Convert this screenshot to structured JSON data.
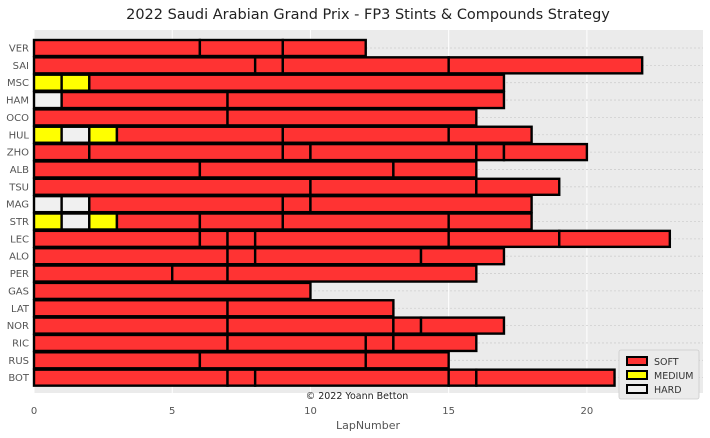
{
  "chart_data": {
    "type": "bar",
    "orientation": "horizontal",
    "stacked": true,
    "title": "2022 Saudi Arabian Grand Prix - FP3 Stints & Compounds Strategy",
    "xlabel": "LapNumber",
    "ylabel": "",
    "xlim": [
      0,
      24.2
    ],
    "xticks": [
      0,
      5,
      10,
      15,
      20
    ],
    "grid": true,
    "legend_position": "bottom-right",
    "credit": "© 2022 Yoann Betton",
    "compound_colors": {
      "SOFT": "#ff3333",
      "MEDIUM": "#ffff00",
      "HARD": "#f0f0f0"
    },
    "legend": [
      "SOFT",
      "MEDIUM",
      "HARD"
    ],
    "drivers": [
      {
        "driver": "VER",
        "stints": [
          {
            "compound": "SOFT",
            "laps": 6
          },
          {
            "compound": "SOFT",
            "laps": 3
          },
          {
            "compound": "SOFT",
            "laps": 3
          }
        ]
      },
      {
        "driver": "SAI",
        "stints": [
          {
            "compound": "SOFT",
            "laps": 8
          },
          {
            "compound": "SOFT",
            "laps": 1
          },
          {
            "compound": "SOFT",
            "laps": 6
          },
          {
            "compound": "SOFT",
            "laps": 7
          }
        ]
      },
      {
        "driver": "MSC",
        "stints": [
          {
            "compound": "MEDIUM",
            "laps": 1
          },
          {
            "compound": "MEDIUM",
            "laps": 1
          },
          {
            "compound": "SOFT",
            "laps": 15
          }
        ]
      },
      {
        "driver": "HAM",
        "stints": [
          {
            "compound": "HARD",
            "laps": 1
          },
          {
            "compound": "SOFT",
            "laps": 6
          },
          {
            "compound": "SOFT",
            "laps": 10
          }
        ]
      },
      {
        "driver": "OCO",
        "stints": [
          {
            "compound": "SOFT",
            "laps": 7
          },
          {
            "compound": "SOFT",
            "laps": 9
          }
        ]
      },
      {
        "driver": "HUL",
        "stints": [
          {
            "compound": "MEDIUM",
            "laps": 1
          },
          {
            "compound": "HARD",
            "laps": 1
          },
          {
            "compound": "MEDIUM",
            "laps": 1
          },
          {
            "compound": "SOFT",
            "laps": 6
          },
          {
            "compound": "SOFT",
            "laps": 6
          },
          {
            "compound": "SOFT",
            "laps": 3
          }
        ]
      },
      {
        "driver": "ZHO",
        "stints": [
          {
            "compound": "SOFT",
            "laps": 2
          },
          {
            "compound": "SOFT",
            "laps": 7
          },
          {
            "compound": "SOFT",
            "laps": 1
          },
          {
            "compound": "SOFT",
            "laps": 6
          },
          {
            "compound": "SOFT",
            "laps": 1
          },
          {
            "compound": "SOFT",
            "laps": 3
          }
        ]
      },
      {
        "driver": "ALB",
        "stints": [
          {
            "compound": "SOFT",
            "laps": 6
          },
          {
            "compound": "SOFT",
            "laps": 7
          },
          {
            "compound": "SOFT",
            "laps": 3
          }
        ]
      },
      {
        "driver": "TSU",
        "stints": [
          {
            "compound": "SOFT",
            "laps": 10
          },
          {
            "compound": "SOFT",
            "laps": 6
          },
          {
            "compound": "SOFT",
            "laps": 3
          }
        ]
      },
      {
        "driver": "MAG",
        "stints": [
          {
            "compound": "HARD",
            "laps": 1
          },
          {
            "compound": "HARD",
            "laps": 1
          },
          {
            "compound": "SOFT",
            "laps": 7
          },
          {
            "compound": "SOFT",
            "laps": 1
          },
          {
            "compound": "SOFT",
            "laps": 8
          }
        ]
      },
      {
        "driver": "STR",
        "stints": [
          {
            "compound": "MEDIUM",
            "laps": 1
          },
          {
            "compound": "HARD",
            "laps": 1
          },
          {
            "compound": "MEDIUM",
            "laps": 1
          },
          {
            "compound": "SOFT",
            "laps": 3
          },
          {
            "compound": "SOFT",
            "laps": 3
          },
          {
            "compound": "SOFT",
            "laps": 6
          },
          {
            "compound": "SOFT",
            "laps": 3
          }
        ]
      },
      {
        "driver": "LEC",
        "stints": [
          {
            "compound": "SOFT",
            "laps": 6
          },
          {
            "compound": "SOFT",
            "laps": 1
          },
          {
            "compound": "SOFT",
            "laps": 1
          },
          {
            "compound": "SOFT",
            "laps": 7
          },
          {
            "compound": "SOFT",
            "laps": 4
          },
          {
            "compound": "SOFT",
            "laps": 4
          }
        ]
      },
      {
        "driver": "ALO",
        "stints": [
          {
            "compound": "SOFT",
            "laps": 7
          },
          {
            "compound": "SOFT",
            "laps": 1
          },
          {
            "compound": "SOFT",
            "laps": 6
          },
          {
            "compound": "SOFT",
            "laps": 3
          }
        ]
      },
      {
        "driver": "PER",
        "stints": [
          {
            "compound": "SOFT",
            "laps": 5
          },
          {
            "compound": "SOFT",
            "laps": 2
          },
          {
            "compound": "SOFT",
            "laps": 9
          }
        ]
      },
      {
        "driver": "GAS",
        "stints": [
          {
            "compound": "SOFT",
            "laps": 10
          }
        ]
      },
      {
        "driver": "LAT",
        "stints": [
          {
            "compound": "SOFT",
            "laps": 7
          },
          {
            "compound": "SOFT",
            "laps": 6
          }
        ]
      },
      {
        "driver": "NOR",
        "stints": [
          {
            "compound": "SOFT",
            "laps": 7
          },
          {
            "compound": "SOFT",
            "laps": 6
          },
          {
            "compound": "SOFT",
            "laps": 1
          },
          {
            "compound": "SOFT",
            "laps": 3
          }
        ]
      },
      {
        "driver": "RIC",
        "stints": [
          {
            "compound": "SOFT",
            "laps": 7
          },
          {
            "compound": "SOFT",
            "laps": 5
          },
          {
            "compound": "SOFT",
            "laps": 1
          },
          {
            "compound": "SOFT",
            "laps": 3
          }
        ]
      },
      {
        "driver": "RUS",
        "stints": [
          {
            "compound": "SOFT",
            "laps": 6
          },
          {
            "compound": "SOFT",
            "laps": 6
          },
          {
            "compound": "SOFT",
            "laps": 3
          }
        ]
      },
      {
        "driver": "BOT",
        "stints": [
          {
            "compound": "SOFT",
            "laps": 7
          },
          {
            "compound": "SOFT",
            "laps": 1
          },
          {
            "compound": "SOFT",
            "laps": 7
          },
          {
            "compound": "SOFT",
            "laps": 1
          },
          {
            "compound": "SOFT",
            "laps": 5
          }
        ]
      }
    ]
  }
}
